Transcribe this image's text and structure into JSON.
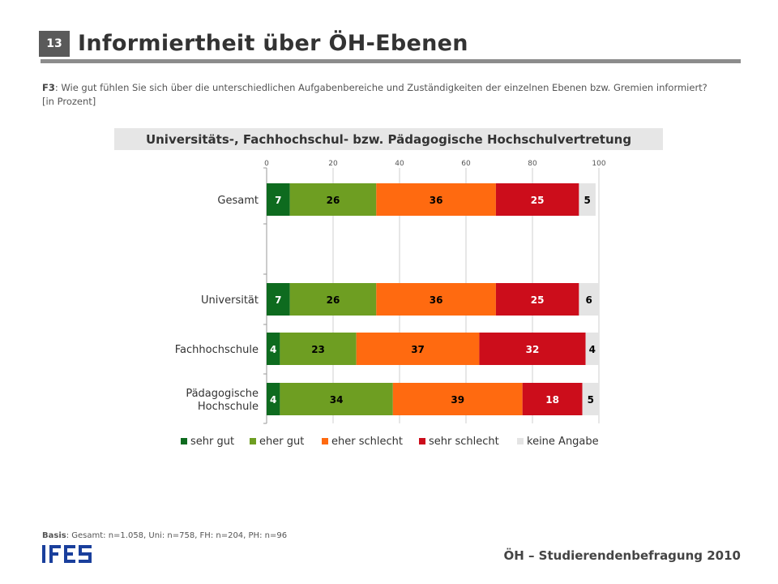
{
  "header": {
    "slide_number": "13",
    "title": "Informiertheit über ÖH-Ebenen",
    "question_code": "F3",
    "question_text": ": Wie gut fühlen Sie sich über die unterschiedlichen Aufgabenbereiche und Zuständigkeiten der einzelnen Ebenen bzw. Gremien informiert? [in Prozent]"
  },
  "banner": "Universitäts-, Fachhochschul- bzw. Pädagogische Hochschulvertretung",
  "chart_data": {
    "type": "bar",
    "orientation": "horizontal-stacked",
    "xlim": [
      0,
      100
    ],
    "xticks": [
      "0",
      "20",
      "40",
      "60",
      "80",
      "100"
    ],
    "grid": true,
    "legend_position": "bottom",
    "categories": [
      [
        "Gesamt"
      ],
      [
        ""
      ],
      [
        "Universität"
      ],
      [
        "Fachhochschule"
      ],
      [
        "Pädagogische",
        "Hochschule"
      ]
    ],
    "series": [
      {
        "name": "sehr gut",
        "color": "#0e6b1f",
        "values": [
          7,
          null,
          7,
          4,
          4
        ]
      },
      {
        "name": "eher gut",
        "color": "#6e9e22",
        "values": [
          26,
          null,
          26,
          23,
          34
        ]
      },
      {
        "name": "eher schlecht",
        "color": "#ff6a10",
        "values": [
          36,
          null,
          36,
          37,
          39
        ]
      },
      {
        "name": "sehr schlecht",
        "color": "#cc0d1b",
        "values": [
          25,
          null,
          25,
          32,
          18
        ]
      },
      {
        "name": "keine Angabe",
        "color": "#e4e4e4",
        "values": [
          5,
          null,
          6,
          4,
          5
        ]
      }
    ],
    "label_colors": [
      "#ffffff",
      "#000000",
      "#000000",
      "#ffffff",
      "#000000"
    ]
  },
  "basis": {
    "label": "Basis",
    "text": ": Gesamt: n=1.058, Uni: n=758, FH: n=204, PH: n=96"
  },
  "footer": {
    "logo_text": "IFES",
    "logo_color": "#1a3f9c",
    "subtitle": "ÖH – Studierendenbefragung 2010"
  }
}
